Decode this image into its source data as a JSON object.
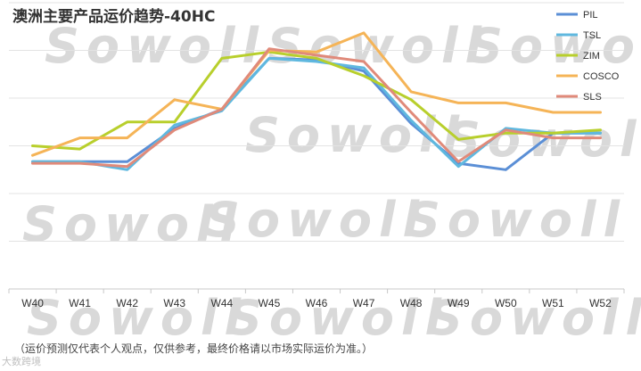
{
  "chart_data": {
    "type": "line",
    "title": "澳洲主要产品运价趋势-40HC",
    "categories": [
      "W40",
      "W41",
      "W42",
      "W43",
      "W44",
      "W45",
      "W46",
      "W47",
      "W48",
      "W49",
      "W50",
      "W51",
      "W52"
    ],
    "series": [
      {
        "name": "PIL",
        "color": "#5b8fd6",
        "values": [
          0.5,
          0.5,
          0.5,
          2.6,
          3.8,
          7.0,
          6.9,
          6.2,
          2.9,
          0.4,
          0.0,
          2.3,
          2.3
        ]
      },
      {
        "name": "TSL",
        "color": "#5fb8df",
        "values": [
          0.5,
          0.5,
          0.0,
          2.8,
          3.7,
          7.0,
          6.8,
          6.4,
          3.1,
          0.2,
          2.6,
          2.3,
          2.3
        ]
      },
      {
        "name": "ZIM",
        "color": "#b8cf2c",
        "values": [
          1.5,
          1.3,
          3.0,
          3.0,
          7.0,
          7.4,
          7.0,
          5.9,
          4.4,
          1.9,
          2.3,
          2.3,
          2.5
        ]
      },
      {
        "name": "COSCO",
        "color": "#f5b457",
        "values": [
          0.9,
          2.0,
          2.0,
          4.4,
          3.8,
          7.5,
          7.4,
          8.6,
          4.9,
          4.2,
          4.2,
          3.6,
          3.6
        ]
      },
      {
        "name": "SLS",
        "color": "#e08a7a",
        "values": [
          0.4,
          0.4,
          0.2,
          2.5,
          3.8,
          7.6,
          7.2,
          6.8,
          3.6,
          0.5,
          2.5,
          2.0,
          2.0
        ]
      }
    ],
    "ylim": [
      -7.5,
      10.5
    ],
    "grid": true,
    "legend_position": "top-right"
  },
  "footnote": "（运价预测仅代表个人观点，仅供参考，最终价格请以市场实际运价为准。）",
  "watermark": "Sowoll",
  "logo_text": "大数跨境"
}
